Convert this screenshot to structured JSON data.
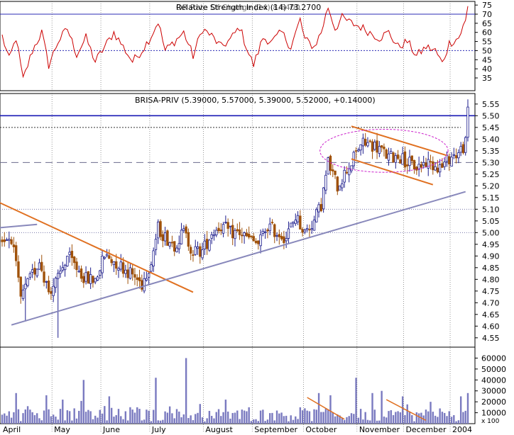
{
  "rsi_panel": {
    "title": "Relative Strength Index (14) 73.2700",
    "overlap_text": "OR Rate Of Change (14) 8.6400",
    "ylim": [
      28,
      77
    ],
    "ticks": [
      35,
      40,
      45,
      50,
      55,
      60,
      65,
      70,
      75
    ],
    "ref_lines": [
      {
        "value": 70,
        "style": "solid",
        "color": "#2b2bb5"
      },
      {
        "value": 50,
        "style": "dotted",
        "color": "#2b2bb5"
      }
    ],
    "line_color": "#cc0000"
  },
  "price_panel": {
    "title": "BRISA-PRIV (5.39000, 5.57000, 5.39000, 5.52000, +0.14000)",
    "ylim": [
      4.51,
      5.595
    ],
    "ticks": [
      "5.55",
      "5.50",
      "5.45",
      "5.40",
      "5.35",
      "5.30",
      "5.25",
      "5.20",
      "5.15",
      "5.10",
      "5.05",
      "5.00",
      "4.95",
      "4.90",
      "4.85",
      "4.80",
      "4.75",
      "4.70",
      "4.65",
      "4.60",
      "4.55"
    ],
    "up_color": "#1c1c8c",
    "down_color": "#a0520a",
    "horizontal_lines": [
      {
        "value": 5.5,
        "style": "solid",
        "color": "#1a1ab5"
      },
      {
        "value": 5.45,
        "style": "dotted",
        "color": "#333333"
      },
      {
        "value": 5.3,
        "style": "long-dash",
        "color": "#6b6b8c"
      },
      {
        "value": 5.1,
        "style": "fine-dash",
        "color": "#7777aa"
      },
      {
        "value": 5.0,
        "style": "fine-dash",
        "color": "#7777aa"
      }
    ]
  },
  "volume_panel": {
    "ylim": [
      0,
      70000
    ],
    "ticks": [
      "60000",
      "50000",
      "40000",
      "30000",
      "20000",
      "10000"
    ],
    "scale_label": "x 100",
    "bar_color": "#7a7ac0"
  },
  "x_axis": {
    "months": [
      "April",
      "May",
      "June",
      "July",
      "August",
      "September",
      "October",
      "November",
      "December",
      "2004"
    ]
  },
  "chart_data": {
    "type": "candlestick",
    "series_note": "Daily OHLC price with RSI and volume sub-panels",
    "month_starts": {
      "April": 0,
      "May": 22,
      "June": 43,
      "July": 64,
      "August": 87,
      "September": 108,
      "October": 130,
      "November": 153,
      "December": 173,
      "2004": 193
    },
    "price_anchors": [
      {
        "x": 0,
        "close": 4.97
      },
      {
        "x": 4,
        "close": 4.98
      },
      {
        "x": 8,
        "close": 4.72
      },
      {
        "x": 12,
        "close": 4.8
      },
      {
        "x": 16,
        "close": 4.88
      },
      {
        "x": 20,
        "close": 4.75
      },
      {
        "x": 24,
        "close": 4.8
      },
      {
        "x": 28,
        "close": 4.9
      },
      {
        "x": 32,
        "close": 4.85
      },
      {
        "x": 36,
        "close": 4.8
      },
      {
        "x": 40,
        "close": 4.8
      },
      {
        "x": 44,
        "close": 4.9
      },
      {
        "x": 48,
        "close": 4.88
      },
      {
        "x": 52,
        "close": 4.85
      },
      {
        "x": 56,
        "close": 4.82
      },
      {
        "x": 60,
        "close": 4.78
      },
      {
        "x": 64,
        "close": 4.88
      },
      {
        "x": 67,
        "close": 5.02
      },
      {
        "x": 70,
        "close": 4.98
      },
      {
        "x": 74,
        "close": 4.95
      },
      {
        "x": 78,
        "close": 5.0
      },
      {
        "x": 82,
        "close": 4.92
      },
      {
        "x": 86,
        "close": 4.92
      },
      {
        "x": 90,
        "close": 5.0
      },
      {
        "x": 94,
        "close": 5.03
      },
      {
        "x": 98,
        "close": 5.0
      },
      {
        "x": 102,
        "close": 5.0
      },
      {
        "x": 106,
        "close": 4.97
      },
      {
        "x": 110,
        "close": 4.95
      },
      {
        "x": 114,
        "close": 5.03
      },
      {
        "x": 118,
        "close": 5.0
      },
      {
        "x": 122,
        "close": 4.98
      },
      {
        "x": 126,
        "close": 5.07
      },
      {
        "x": 130,
        "close": 5.0
      },
      {
        "x": 134,
        "close": 5.05
      },
      {
        "x": 137,
        "close": 5.12
      },
      {
        "x": 140,
        "close": 5.3
      },
      {
        "x": 144,
        "close": 5.2
      },
      {
        "x": 148,
        "close": 5.27
      },
      {
        "x": 150,
        "close": 5.3
      },
      {
        "x": 154,
        "close": 5.38
      },
      {
        "x": 158,
        "close": 5.38
      },
      {
        "x": 162,
        "close": 5.36
      },
      {
        "x": 166,
        "close": 5.32
      },
      {
        "x": 170,
        "close": 5.33
      },
      {
        "x": 174,
        "close": 5.3
      },
      {
        "x": 178,
        "close": 5.28
      },
      {
        "x": 182,
        "close": 5.3
      },
      {
        "x": 186,
        "close": 5.29
      },
      {
        "x": 189,
        "close": 5.28
      },
      {
        "x": 192,
        "close": 5.32
      },
      {
        "x": 196,
        "close": 5.34
      },
      {
        "x": 199,
        "close": 5.38
      },
      {
        "x": 200,
        "close": 5.52
      }
    ],
    "rsi_anchors": [
      {
        "x": 0,
        "v": 58
      },
      {
        "x": 3,
        "v": 45
      },
      {
        "x": 6,
        "v": 57
      },
      {
        "x": 9,
        "v": 34
      },
      {
        "x": 13,
        "v": 50
      },
      {
        "x": 17,
        "v": 60
      },
      {
        "x": 20,
        "v": 42
      },
      {
        "x": 24,
        "v": 55
      },
      {
        "x": 28,
        "v": 62
      },
      {
        "x": 32,
        "v": 48
      },
      {
        "x": 36,
        "v": 57
      },
      {
        "x": 40,
        "v": 44
      },
      {
        "x": 44,
        "v": 52
      },
      {
        "x": 48,
        "v": 60
      },
      {
        "x": 52,
        "v": 52
      },
      {
        "x": 56,
        "v": 44
      },
      {
        "x": 60,
        "v": 50
      },
      {
        "x": 64,
        "v": 58
      },
      {
        "x": 67,
        "v": 66
      },
      {
        "x": 70,
        "v": 50
      },
      {
        "x": 74,
        "v": 55
      },
      {
        "x": 78,
        "v": 60
      },
      {
        "x": 82,
        "v": 47
      },
      {
        "x": 86,
        "v": 62
      },
      {
        "x": 90,
        "v": 58
      },
      {
        "x": 94,
        "v": 52
      },
      {
        "x": 98,
        "v": 56
      },
      {
        "x": 102,
        "v": 63
      },
      {
        "x": 106,
        "v": 48
      },
      {
        "x": 108,
        "v": 42
      },
      {
        "x": 112,
        "v": 57
      },
      {
        "x": 116,
        "v": 55
      },
      {
        "x": 120,
        "v": 60
      },
      {
        "x": 124,
        "v": 52
      },
      {
        "x": 128,
        "v": 67
      },
      {
        "x": 130,
        "v": 56
      },
      {
        "x": 134,
        "v": 52
      },
      {
        "x": 137,
        "v": 60
      },
      {
        "x": 140,
        "v": 74
      },
      {
        "x": 143,
        "v": 62
      },
      {
        "x": 146,
        "v": 68
      },
      {
        "x": 150,
        "v": 65
      },
      {
        "x": 154,
        "v": 63
      },
      {
        "x": 158,
        "v": 60
      },
      {
        "x": 162,
        "v": 57
      },
      {
        "x": 166,
        "v": 60
      },
      {
        "x": 170,
        "v": 52
      },
      {
        "x": 174,
        "v": 55
      },
      {
        "x": 178,
        "v": 47
      },
      {
        "x": 182,
        "v": 52
      },
      {
        "x": 186,
        "v": 50
      },
      {
        "x": 189,
        "v": 43
      },
      {
        "x": 192,
        "v": 54
      },
      {
        "x": 196,
        "v": 57
      },
      {
        "x": 199,
        "v": 66
      },
      {
        "x": 200,
        "v": 74
      }
    ],
    "volume_spikes": [
      {
        "x": 6,
        "v": 28000
      },
      {
        "x": 11,
        "v": 16000
      },
      {
        "x": 19,
        "v": 26000
      },
      {
        "x": 26,
        "v": 22000
      },
      {
        "x": 31,
        "v": 14000
      },
      {
        "x": 35,
        "v": 40000
      },
      {
        "x": 46,
        "v": 25000
      },
      {
        "x": 58,
        "v": 15000
      },
      {
        "x": 66,
        "v": 42000
      },
      {
        "x": 79,
        "v": 60000
      },
      {
        "x": 85,
        "v": 18000
      },
      {
        "x": 96,
        "v": 22000
      },
      {
        "x": 106,
        "v": 15000
      },
      {
        "x": 118,
        "v": 12000
      },
      {
        "x": 128,
        "v": 15000
      },
      {
        "x": 136,
        "v": 28000
      },
      {
        "x": 141,
        "v": 26000
      },
      {
        "x": 152,
        "v": 42000
      },
      {
        "x": 159,
        "v": 28000
      },
      {
        "x": 163,
        "v": 30000
      },
      {
        "x": 172,
        "v": 25000
      },
      {
        "x": 184,
        "v": 20000
      },
      {
        "x": 197,
        "v": 25000
      },
      {
        "x": 200,
        "v": 28000
      }
    ],
    "drawn_lines": [
      {
        "color": "#e07020",
        "from": {
          "x": -8,
          "price": 5.16
        },
        "to": {
          "x": 82,
          "price": 4.745
        }
      },
      {
        "color": "#8888bb",
        "from": {
          "x": 4,
          "price": 4.605
        },
        "to": {
          "x": 199,
          "price": 5.175
        }
      },
      {
        "color": "#8888bb",
        "from": {
          "x": -2,
          "price": 5.02
        },
        "to": {
          "x": 15,
          "price": 5.035
        }
      },
      {
        "color": "#e07020",
        "from": {
          "x": 150,
          "price": 5.455
        },
        "to": {
          "x": 191,
          "price": 5.33
        }
      },
      {
        "color": "#e07020",
        "from": {
          "x": 150,
          "price": 5.315
        },
        "to": {
          "x": 185,
          "price": 5.205
        }
      },
      {
        "color": "#e07020",
        "panel": "volume",
        "from": {
          "x": 131,
          "v": 24000
        },
        "to": {
          "x": 147,
          "v": 4000
        }
      },
      {
        "color": "#e07020",
        "panel": "volume",
        "from": {
          "x": 165,
          "v": 22000
        },
        "to": {
          "x": 182,
          "v": 3000
        }
      }
    ],
    "ellipse": {
      "color": "#cc22cc",
      "style": "dashed",
      "center": {
        "x": 164,
        "price": 5.35
      },
      "half_width_days": 22,
      "half_height_price": 0.08
    }
  }
}
